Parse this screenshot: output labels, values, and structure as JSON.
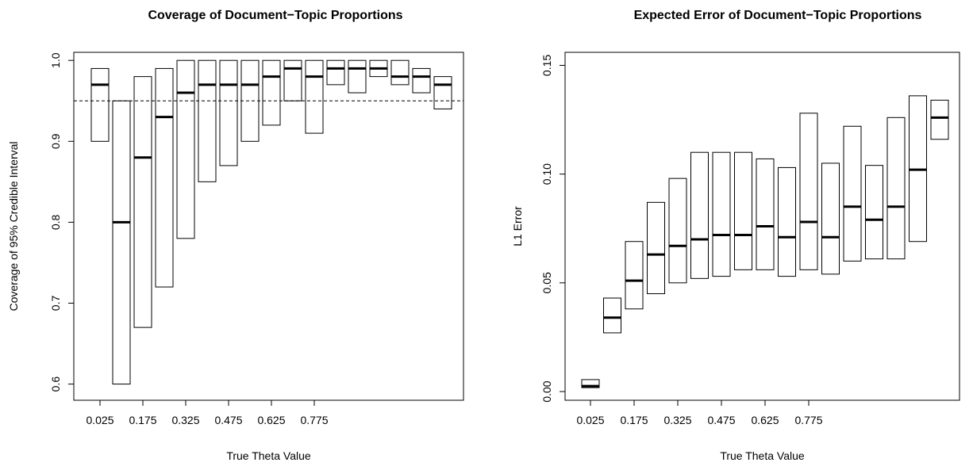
{
  "chart_data": [
    {
      "type": "boxplot",
      "title": "Coverage of Document−Topic Proportions",
      "xlabel": "True Theta Value",
      "ylabel": "Coverage of 95% Credible Interval",
      "ylim": [
        0.58,
        1.01
      ],
      "yticks": [
        "0.6",
        "0.7",
        "0.8",
        "0.9",
        "1.0"
      ],
      "ytick_values": [
        0.6,
        0.7,
        0.8,
        0.9,
        1.0
      ],
      "xtick_labels": [
        "0.025",
        "0.175",
        "0.325",
        "0.475",
        "0.625",
        "0.775"
      ],
      "xtick_positions": [
        1,
        3,
        5,
        7,
        9,
        11
      ],
      "reference_line": 0.95,
      "boxes": [
        {
          "low": 0.9,
          "median": 0.97,
          "high": 0.99
        },
        {
          "low": 0.6,
          "median": 0.8,
          "high": 0.95
        },
        {
          "low": 0.67,
          "median": 0.88,
          "high": 0.98
        },
        {
          "low": 0.72,
          "median": 0.93,
          "high": 0.99
        },
        {
          "low": 0.78,
          "median": 0.96,
          "high": 1.0
        },
        {
          "low": 0.85,
          "median": 0.97,
          "high": 1.0
        },
        {
          "low": 0.87,
          "median": 0.97,
          "high": 1.0
        },
        {
          "low": 0.9,
          "median": 0.97,
          "high": 1.0
        },
        {
          "low": 0.92,
          "median": 0.98,
          "high": 1.0
        },
        {
          "low": 0.95,
          "median": 0.99,
          "high": 1.0
        },
        {
          "low": 0.91,
          "median": 0.98,
          "high": 1.0
        },
        {
          "low": 0.97,
          "median": 0.99,
          "high": 1.0
        },
        {
          "low": 0.96,
          "median": 0.99,
          "high": 1.0
        },
        {
          "low": 0.98,
          "median": 0.99,
          "high": 1.0
        },
        {
          "low": 0.97,
          "median": 0.98,
          "high": 1.0
        },
        {
          "low": 0.96,
          "median": 0.98,
          "high": 0.99
        },
        {
          "low": 0.94,
          "median": 0.97,
          "high": 0.98
        }
      ]
    },
    {
      "type": "boxplot",
      "title": "Expected Error of Document−Topic Proportions",
      "xlabel": "True Theta Value",
      "ylabel": "L1 Error",
      "ylim": [
        -0.004,
        0.156
      ],
      "yticks": [
        "0.00",
        "0.05",
        "0.10",
        "0.15"
      ],
      "ytick_values": [
        0.0,
        0.05,
        0.1,
        0.15
      ],
      "xtick_labels": [
        "0.025",
        "0.175",
        "0.325",
        "0.475",
        "0.625",
        "0.775"
      ],
      "xtick_positions": [
        1,
        3,
        5,
        7,
        9,
        11
      ],
      "boxes": [
        {
          "low": 0.0018,
          "median": 0.0025,
          "high": 0.0055
        },
        {
          "low": 0.027,
          "median": 0.034,
          "high": 0.043
        },
        {
          "low": 0.038,
          "median": 0.051,
          "high": 0.069
        },
        {
          "low": 0.045,
          "median": 0.063,
          "high": 0.087
        },
        {
          "low": 0.05,
          "median": 0.067,
          "high": 0.098
        },
        {
          "low": 0.052,
          "median": 0.07,
          "high": 0.11
        },
        {
          "low": 0.053,
          "median": 0.072,
          "high": 0.11
        },
        {
          "low": 0.056,
          "median": 0.072,
          "high": 0.11
        },
        {
          "low": 0.056,
          "median": 0.076,
          "high": 0.107
        },
        {
          "low": 0.053,
          "median": 0.071,
          "high": 0.103
        },
        {
          "low": 0.056,
          "median": 0.078,
          "high": 0.128
        },
        {
          "low": 0.054,
          "median": 0.071,
          "high": 0.105
        },
        {
          "low": 0.06,
          "median": 0.085,
          "high": 0.122
        },
        {
          "low": 0.061,
          "median": 0.079,
          "high": 0.104
        },
        {
          "low": 0.061,
          "median": 0.085,
          "high": 0.126
        },
        {
          "low": 0.069,
          "median": 0.102,
          "high": 0.136
        },
        {
          "low": 0.116,
          "median": 0.126,
          "high": 0.134
        }
      ]
    }
  ]
}
